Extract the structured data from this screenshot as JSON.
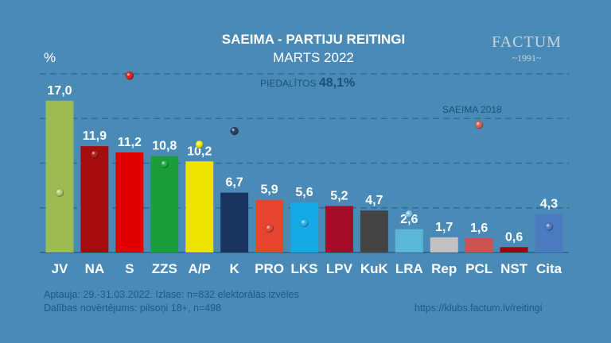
{
  "chart_data": {
    "type": "bar",
    "title": "SAEIMA - PARTIJU REITINGI",
    "subtitle": "MARTS 2022",
    "ylabel": "%",
    "ylim": [
      0,
      20
    ],
    "grid": true,
    "gridlines": [
      5,
      10,
      15,
      20
    ],
    "categories": [
      "JV",
      "NA",
      "S",
      "ZZS",
      "A/P",
      "K",
      "PRO",
      "LKS",
      "LPV",
      "KuK",
      "LRA",
      "Rep",
      "PCL",
      "NST",
      "Cita"
    ],
    "series": [
      {
        "name": "Marts 2022",
        "values": [
          17.0,
          11.9,
          11.2,
          10.8,
          10.2,
          6.7,
          5.9,
          5.6,
          5.2,
          4.7,
          2.6,
          1.7,
          1.6,
          0.6,
          4.3
        ],
        "labels": [
          "17,0",
          "11,9",
          "11,2",
          "10,8",
          "10,2",
          "6,7",
          "5,9",
          "5,6",
          "5,2",
          "4,7",
          "2,6",
          "1,7",
          "1,6",
          "0,6",
          "4,3"
        ],
        "colors": [
          "#9dbb55",
          "#a50d0d",
          "#e00000",
          "#1a9e3c",
          "#ece400",
          "#1a365e",
          "#e5452f",
          "#16a9e6",
          "#a50c2a",
          "#444444",
          "#5cb6d8",
          "#c2c2c2",
          "#c9534f",
          "#a00010",
          "#4a7bbf"
        ]
      },
      {
        "name": "SAEIMA 2018",
        "type": "scatter",
        "values": [
          6.7,
          11.0,
          19.8,
          9.9,
          12.1,
          13.6,
          2.7,
          3.3,
          null,
          null,
          4.3,
          null,
          14.3,
          null,
          2.9
        ],
        "colors": [
          "#b5cf6a",
          "#b51515",
          "#ee1010",
          "#22aa44",
          "#f2ea10",
          "#1a365e",
          "#e5452f",
          "#20b6f0",
          null,
          null,
          "#70c8e8",
          null,
          "#d06050",
          null,
          "#4a7bbf"
        ]
      }
    ],
    "annotations": {
      "turnout_label": "PIEDALĪTOS",
      "turnout_value": "48,1%",
      "legend_2018": "SAEIMA 2018"
    }
  },
  "logo": {
    "name": "FACTUM",
    "year": "~1991~"
  },
  "footer": {
    "line1": "Aptauja: 29.-31.03.2022. Izlase: n=832 elektorālās izvēles",
    "line2": "Dalības novērtējums: pilsoņi 18+, n=498",
    "url": "https://klubs.factum.lv/reitingi"
  }
}
